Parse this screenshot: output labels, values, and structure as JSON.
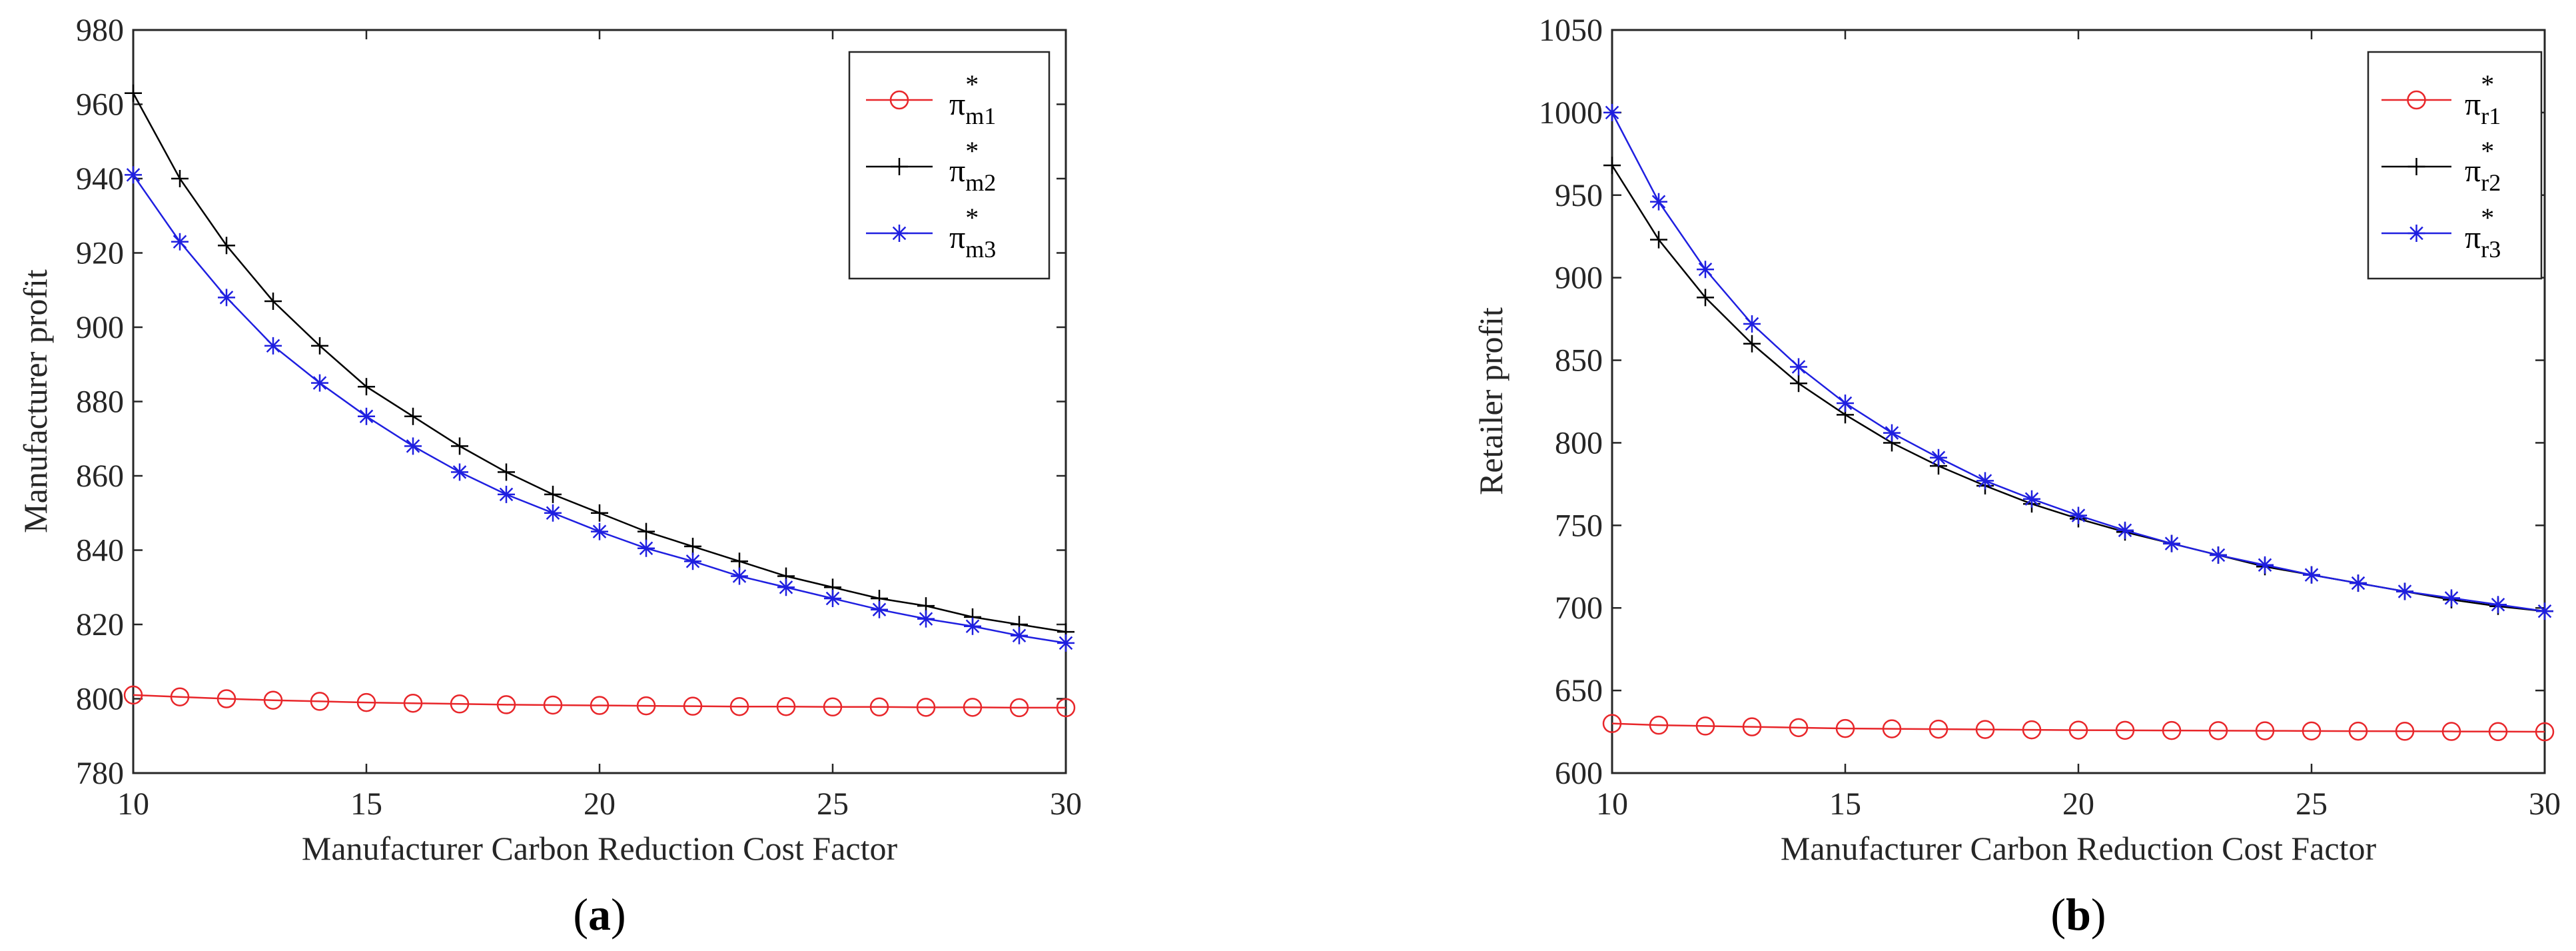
{
  "chart_data": [
    {
      "type": "line",
      "panel_label": "(a)",
      "panel_letter": "a",
      "xlabel": "Manufacturer Carbon Reduction Cost Factor",
      "ylabel": "Manufacturer profit",
      "xlim": [
        10,
        30
      ],
      "ylim": [
        780,
        980
      ],
      "xticks": [
        10,
        15,
        20,
        25,
        30
      ],
      "yticks": [
        780,
        800,
        820,
        840,
        860,
        880,
        900,
        920,
        940,
        960,
        980
      ],
      "grid": false,
      "legend_position": "top-right",
      "x": [
        10,
        11,
        12,
        13,
        14,
        15,
        16,
        17,
        18,
        19,
        20,
        21,
        22,
        23,
        24,
        25,
        26,
        27,
        28,
        29,
        30
      ],
      "series": [
        {
          "name": "π*m1",
          "symbol": "π",
          "sup": "*",
          "sub": "m1",
          "color": "#e8262a",
          "marker": "circle",
          "values": [
            801,
            800.5,
            800,
            799.6,
            799.3,
            799,
            798.8,
            798.6,
            798.4,
            798.3,
            798.2,
            798.1,
            798,
            797.9,
            797.9,
            797.8,
            797.8,
            797.7,
            797.7,
            797.6,
            797.6
          ]
        },
        {
          "name": "π*m2",
          "symbol": "π",
          "sup": "*",
          "sub": "m2",
          "color": "#000000",
          "marker": "plus",
          "values": [
            963,
            940,
            922,
            907,
            895,
            884,
            876,
            868,
            861,
            855,
            850,
            845,
            841,
            837,
            833,
            830,
            827,
            825,
            822,
            820,
            818
          ]
        },
        {
          "name": "π*m3",
          "symbol": "π",
          "sup": "*",
          "sub": "m3",
          "color": "#1f1fe0",
          "marker": "asterisk",
          "values": [
            941,
            923,
            908,
            895,
            885,
            876,
            868,
            861,
            855,
            850,
            845,
            840.5,
            837,
            833,
            830,
            827,
            824,
            821.5,
            819.5,
            817,
            815
          ]
        }
      ]
    },
    {
      "type": "line",
      "panel_label": "(b)",
      "panel_letter": "b",
      "xlabel": "Manufacturer Carbon Reduction Cost Factor",
      "ylabel": "Retailer profit",
      "xlim": [
        10,
        30
      ],
      "ylim": [
        600,
        1050
      ],
      "xticks": [
        10,
        15,
        20,
        25,
        30
      ],
      "yticks": [
        600,
        650,
        700,
        750,
        800,
        850,
        900,
        950,
        1000,
        1050
      ],
      "grid": false,
      "legend_position": "top-right",
      "x": [
        10,
        11,
        12,
        13,
        14,
        15,
        16,
        17,
        18,
        19,
        20,
        21,
        22,
        23,
        24,
        25,
        26,
        27,
        28,
        29,
        30
      ],
      "series": [
        {
          "name": "π*r1",
          "symbol": "π",
          "sup": "*",
          "sub": "r1",
          "color": "#e8262a",
          "marker": "circle",
          "values": [
            630,
            629,
            628.5,
            628,
            627.5,
            627,
            626.8,
            626.6,
            626.4,
            626.2,
            626,
            625.9,
            625.8,
            625.7,
            625.6,
            625.5,
            625.4,
            625.3,
            625.2,
            625.1,
            625
          ]
        },
        {
          "name": "π*r2",
          "symbol": "π",
          "sup": "*",
          "sub": "r2",
          "color": "#000000",
          "marker": "plus",
          "values": [
            968,
            923,
            888,
            860,
            836,
            817,
            800,
            786,
            774,
            763,
            754,
            746,
            739,
            732,
            725,
            720,
            715,
            710,
            705,
            701,
            698
          ]
        },
        {
          "name": "π*r3",
          "symbol": "π",
          "sup": "*",
          "sub": "r3",
          "color": "#1f1fe0",
          "marker": "asterisk",
          "values": [
            1000,
            946,
            905,
            872,
            846,
            824,
            806,
            791,
            777,
            766,
            756,
            747,
            739,
            732,
            726,
            720,
            715,
            710,
            706,
            702,
            698
          ]
        }
      ]
    }
  ]
}
